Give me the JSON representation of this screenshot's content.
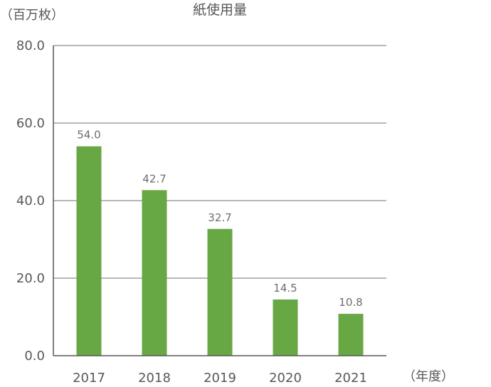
{
  "chart_data": {
    "type": "bar",
    "title": "紙使用量",
    "y_unit_label": "（百万枚）",
    "x_unit_label": "（年度）",
    "categories": [
      "2017",
      "2018",
      "2019",
      "2020",
      "2021"
    ],
    "series": [
      {
        "values": [
          54.0,
          42.7,
          32.7,
          14.5,
          10.8
        ],
        "value_labels": [
          "54.0",
          "42.7",
          "32.7",
          "14.5",
          "10.8"
        ],
        "color": "#67a744"
      }
    ],
    "ylim": [
      0,
      80
    ],
    "y_ticks": [
      "0.0",
      "20.0",
      "40.0",
      "60.0",
      "80.0"
    ],
    "grid": true,
    "grid_color": "#8c8c8c",
    "axis_color": "#595757",
    "text_color": "#595757"
  }
}
